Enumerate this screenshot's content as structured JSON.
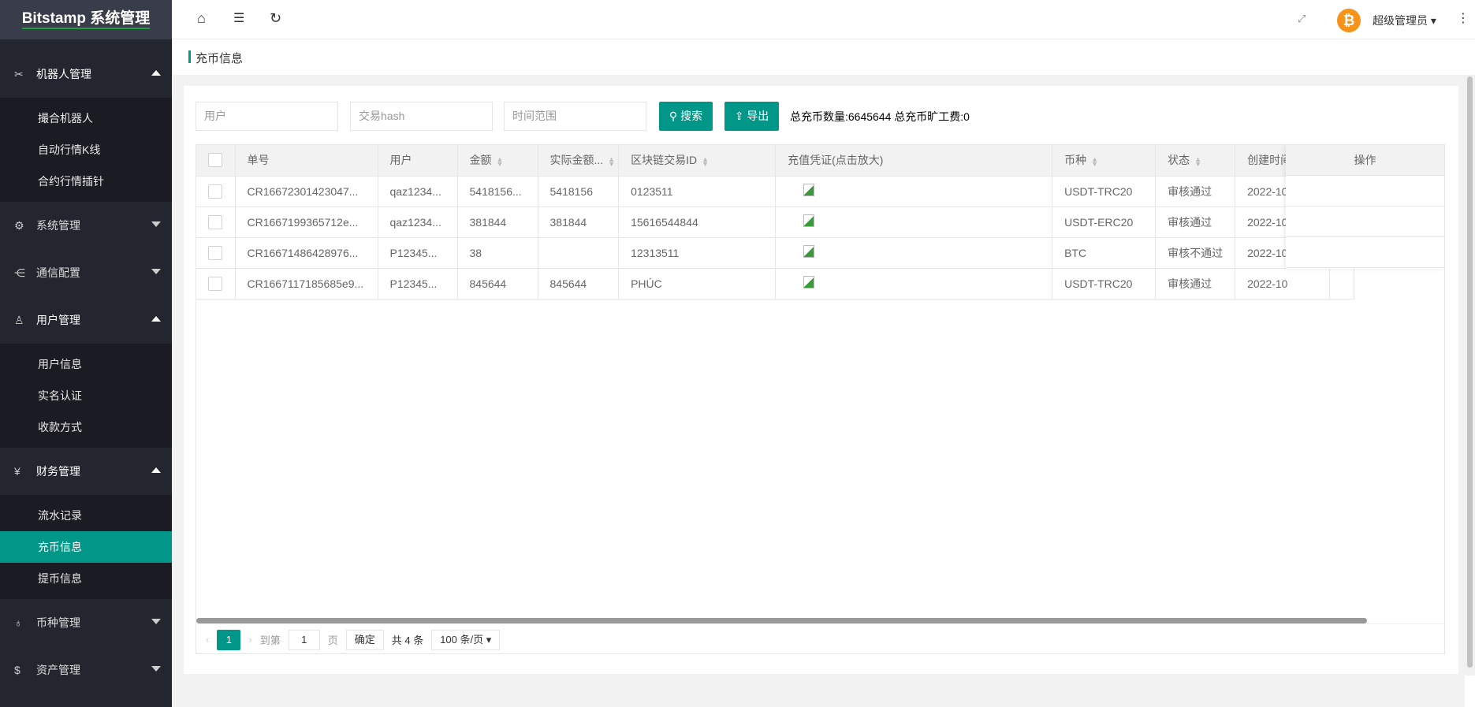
{
  "app": {
    "logo": "Bitstamp 系统管理"
  },
  "sidebar": {
    "groups": [
      {
        "label": "机器人管理",
        "icon": "robot-icon",
        "expanded": true,
        "items": [
          "撮合机器人",
          "自动行情K线",
          "合约行情插针"
        ]
      },
      {
        "label": "系统管理",
        "icon": "gear-icon",
        "expanded": false,
        "items": []
      },
      {
        "label": "通信配置",
        "icon": "config-icon",
        "expanded": false,
        "items": []
      },
      {
        "label": "用户管理",
        "icon": "user-icon",
        "expanded": true,
        "items": [
          "用户信息",
          "实名认证",
          "收款方式"
        ]
      },
      {
        "label": "财务管理",
        "icon": "yen-icon",
        "expanded": true,
        "items": [
          "流水记录",
          "充币信息",
          "提币信息"
        ]
      },
      {
        "label": "币种管理",
        "icon": "coin-icon",
        "expanded": false,
        "items": []
      },
      {
        "label": "资产管理",
        "icon": "dollar-icon",
        "expanded": false,
        "items": []
      }
    ],
    "active": "充币信息",
    "accent": "#009688"
  },
  "topbar": {
    "user": "超级管理员",
    "avatar_icon": "bitcoin-icon"
  },
  "breadcrumb": {
    "title": "充币信息"
  },
  "filters": {
    "user_placeholder": "用户",
    "hash_placeholder": "交易hash",
    "time_placeholder": "时间范围",
    "search_label": "搜索",
    "export_label": "导出"
  },
  "summary": "总充币数量:6645644 总充币旷工费:0",
  "table": {
    "headers": [
      "单号",
      "用户",
      "金额",
      "实际金额...",
      "区块链交易ID",
      "充值凭证(点击放大)",
      "币种",
      "状态",
      "创建时间",
      "操作"
    ],
    "rows": [
      [
        "CR16672301423047...",
        "qaz1234...",
        "5418156...",
        "5418156",
        "0123511",
        "",
        "USDT-TRC20",
        "审核通过",
        "2022-10"
      ],
      [
        "CR1667199365712e...",
        "qaz1234...",
        "381844",
        "381844",
        "15616544844",
        "",
        "USDT-ERC20",
        "审核通过",
        "2022-10"
      ],
      [
        "CR16671486428976...",
        "P12345...",
        "38",
        "",
        "12313511",
        "",
        "BTC",
        "审核不通过",
        "2022-10"
      ],
      [
        "CR1667117185685e9...",
        "P12345...",
        "845644",
        "845644",
        "PHÚC",
        "",
        "USDT-TRC20",
        "审核通过",
        "2022-10"
      ]
    ]
  },
  "pagination": {
    "current": "1",
    "goto_label": "到第",
    "goto_value": "1",
    "page_label": "页",
    "confirm_label": "确定",
    "total": "共 4 条",
    "page_size": "100 条/页"
  }
}
